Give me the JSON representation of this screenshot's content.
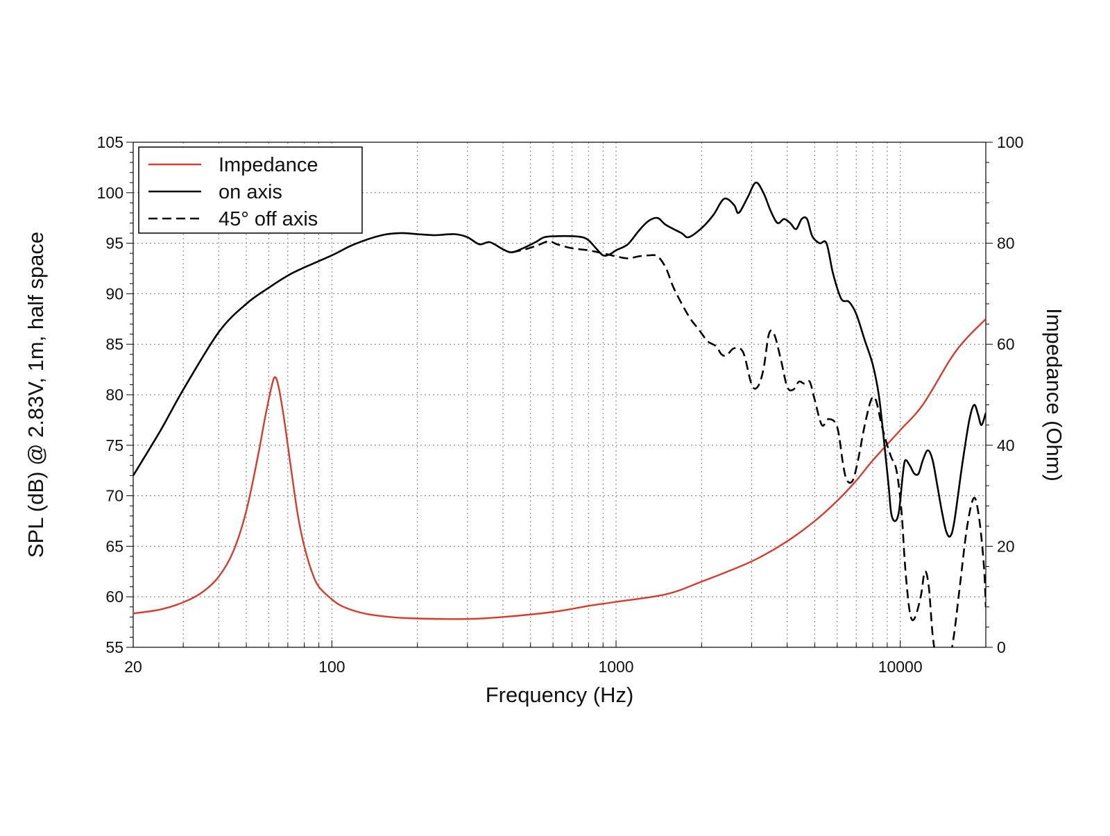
{
  "chart_data": {
    "type": "line",
    "title": "",
    "xlabel": "Frequency (Hz)",
    "ylabel": "SPL (dB) @ 2.83V, 1m, half space",
    "y2label": "Impedance (Ohm)",
    "xscale": "log",
    "xlim": [
      20,
      20000
    ],
    "ylim": [
      55,
      105
    ],
    "y2lim": [
      0,
      100
    ],
    "x_ticks": [
      20,
      100,
      1000,
      10000
    ],
    "x_tick_labels": [
      "20",
      "100",
      "1000",
      "10000"
    ],
    "y_ticks": [
      55,
      60,
      65,
      70,
      75,
      80,
      85,
      90,
      95,
      100,
      105
    ],
    "y_tick_labels": [
      "55",
      "60",
      "65",
      "70",
      "75",
      "80",
      "85",
      "90",
      "95",
      "100",
      "105"
    ],
    "y2_ticks": [
      0,
      20,
      40,
      60,
      80,
      100
    ],
    "y2_tick_labels": [
      "0",
      "20",
      "40",
      "60",
      "80",
      "100"
    ],
    "grid": true,
    "legend_position": "top-left",
    "series": [
      {
        "name": "Impedance",
        "axis": "right",
        "color": "#d93a2b",
        "style": "solid",
        "points": [
          [
            20,
            6.7
          ],
          [
            25,
            7.5
          ],
          [
            30,
            8.9
          ],
          [
            35,
            10.9
          ],
          [
            40,
            14
          ],
          [
            45,
            19
          ],
          [
            50,
            27
          ],
          [
            55,
            38
          ],
          [
            58,
            45
          ],
          [
            61,
            51
          ],
          [
            63,
            53.5
          ],
          [
            65,
            51.5
          ],
          [
            68,
            45
          ],
          [
            72,
            35
          ],
          [
            76,
            26
          ],
          [
            80,
            20
          ],
          [
            85,
            15
          ],
          [
            90,
            12
          ],
          [
            100,
            9.5
          ],
          [
            110,
            8
          ],
          [
            130,
            6.7
          ],
          [
            160,
            6
          ],
          [
            200,
            5.7
          ],
          [
            300,
            5.6
          ],
          [
            400,
            6
          ],
          [
            600,
            7
          ],
          [
            800,
            8.2
          ],
          [
            1000,
            9
          ],
          [
            1500,
            10.5
          ],
          [
            2000,
            13
          ],
          [
            3000,
            17
          ],
          [
            4000,
            21
          ],
          [
            5000,
            25
          ],
          [
            6000,
            29
          ],
          [
            7000,
            33
          ],
          [
            8000,
            37
          ],
          [
            10000,
            43
          ],
          [
            12000,
            48
          ],
          [
            15000,
            57
          ],
          [
            17000,
            61
          ],
          [
            20000,
            65
          ]
        ]
      },
      {
        "name": "on axis",
        "axis": "left",
        "color": "#000000",
        "style": "solid",
        "points": [
          [
            20,
            72
          ],
          [
            25,
            76.5
          ],
          [
            30,
            80.5
          ],
          [
            40,
            86.2
          ],
          [
            50,
            89
          ],
          [
            60,
            90.6
          ],
          [
            70,
            91.8
          ],
          [
            80,
            92.6
          ],
          [
            100,
            93.8
          ],
          [
            120,
            94.9
          ],
          [
            150,
            95.8
          ],
          [
            175,
            96
          ],
          [
            200,
            95.9
          ],
          [
            230,
            95.8
          ],
          [
            270,
            95.9
          ],
          [
            300,
            95.6
          ],
          [
            330,
            94.9
          ],
          [
            360,
            95.1
          ],
          [
            400,
            94.4
          ],
          [
            430,
            94.1
          ],
          [
            470,
            94.5
          ],
          [
            520,
            95.1
          ],
          [
            560,
            95.6
          ],
          [
            620,
            95.7
          ],
          [
            700,
            95.7
          ],
          [
            760,
            95.6
          ],
          [
            800,
            95.3
          ],
          [
            850,
            94.5
          ],
          [
            900,
            93.8
          ],
          [
            950,
            93.9
          ],
          [
            1000,
            94.3
          ],
          [
            1100,
            94.9
          ],
          [
            1200,
            96.2
          ],
          [
            1300,
            97.2
          ],
          [
            1400,
            97.5
          ],
          [
            1500,
            96.8
          ],
          [
            1700,
            96
          ],
          [
            1800,
            95.6
          ],
          [
            2000,
            96.5
          ],
          [
            2200,
            97.8
          ],
          [
            2400,
            99.4
          ],
          [
            2600,
            98.8
          ],
          [
            2700,
            98
          ],
          [
            2900,
            99.5
          ],
          [
            3100,
            101
          ],
          [
            3300,
            100
          ],
          [
            3500,
            98.2
          ],
          [
            3700,
            97
          ],
          [
            3900,
            97.4
          ],
          [
            4100,
            97
          ],
          [
            4300,
            96.4
          ],
          [
            4500,
            97.4
          ],
          [
            4700,
            97.4
          ],
          [
            4900,
            95.7
          ],
          [
            5200,
            95
          ],
          [
            5500,
            95
          ],
          [
            5800,
            92
          ],
          [
            6200,
            89.5
          ],
          [
            6600,
            89.2
          ],
          [
            7000,
            88
          ],
          [
            7500,
            85.4
          ],
          [
            8000,
            83
          ],
          [
            8400,
            80
          ],
          [
            8800,
            75
          ],
          [
            9100,
            71
          ],
          [
            9300,
            68.2
          ],
          [
            9600,
            67.5
          ],
          [
            9900,
            68.5
          ],
          [
            10200,
            72
          ],
          [
            10400,
            73.5
          ],
          [
            10800,
            73
          ],
          [
            11200,
            72.2
          ],
          [
            11600,
            72.2
          ],
          [
            12000,
            73.5
          ],
          [
            12500,
            74.5
          ],
          [
            13000,
            73.5
          ],
          [
            13500,
            71
          ],
          [
            14000,
            68.5
          ],
          [
            14500,
            66.5
          ],
          [
            15000,
            66
          ],
          [
            15500,
            67.5
          ],
          [
            16500,
            73
          ],
          [
            17500,
            77.5
          ],
          [
            18200,
            79
          ],
          [
            18800,
            78
          ],
          [
            19300,
            77
          ],
          [
            20000,
            78.2
          ]
        ]
      },
      {
        "name": "45° off axis",
        "axis": "left",
        "color": "#000000",
        "style": "dashed",
        "points": [
          [
            430,
            94.1
          ],
          [
            480,
            94.4
          ],
          [
            530,
            94.8
          ],
          [
            580,
            95.2
          ],
          [
            620,
            94.9
          ],
          [
            700,
            94.5
          ],
          [
            800,
            94.3
          ],
          [
            900,
            94
          ],
          [
            1000,
            93.7
          ],
          [
            1100,
            93.5
          ],
          [
            1200,
            93.7
          ],
          [
            1300,
            93.8
          ],
          [
            1400,
            93.7
          ],
          [
            1500,
            92.5
          ],
          [
            1600,
            90.5
          ],
          [
            1800,
            87.8
          ],
          [
            1950,
            86.5
          ],
          [
            2100,
            85.3
          ],
          [
            2250,
            84.8
          ],
          [
            2350,
            84
          ],
          [
            2450,
            83.9
          ],
          [
            2600,
            84.6
          ],
          [
            2800,
            84.2
          ],
          [
            3000,
            81
          ],
          [
            3150,
            80.8
          ],
          [
            3300,
            82.5
          ],
          [
            3450,
            86
          ],
          [
            3600,
            86
          ],
          [
            3800,
            83.5
          ],
          [
            4000,
            80.8
          ],
          [
            4200,
            80.5
          ],
          [
            4400,
            81.3
          ],
          [
            4600,
            81.1
          ],
          [
            4800,
            81.3
          ],
          [
            5000,
            79.5
          ],
          [
            5300,
            77
          ],
          [
            5600,
            77.6
          ],
          [
            6000,
            76.8
          ],
          [
            6300,
            73
          ],
          [
            6500,
            71.5
          ],
          [
            6800,
            71.5
          ],
          [
            7100,
            73.5
          ],
          [
            7500,
            77
          ],
          [
            7900,
            79.5
          ],
          [
            8200,
            79.5
          ],
          [
            8600,
            77
          ],
          [
            9000,
            75
          ],
          [
            9300,
            73.8
          ],
          [
            9700,
            72.5
          ],
          [
            10100,
            68.5
          ],
          [
            10400,
            63
          ],
          [
            10800,
            58.5
          ],
          [
            11200,
            57.8
          ],
          [
            11800,
            60
          ],
          [
            12200,
            62.5
          ],
          [
            12600,
            61
          ],
          [
            13000,
            56.2
          ],
          [
            13500,
            53
          ]
        ]
      },
      {
        "name": "45° off axis (high)",
        "axis": "left",
        "color": "#000000",
        "style": "dashed",
        "points": [
          [
            14800,
            53
          ],
          [
            15500,
            56.5
          ],
          [
            16200,
            61
          ],
          [
            17200,
            67
          ],
          [
            18200,
            69.8
          ],
          [
            19000,
            67.5
          ],
          [
            19700,
            63
          ],
          [
            20000,
            59
          ]
        ]
      }
    ]
  },
  "legend": {
    "items": [
      {
        "label": "Impedance",
        "color": "#d93a2b",
        "style": "solid"
      },
      {
        "label": "on axis",
        "color": "#000000",
        "style": "solid"
      },
      {
        "label": "45° off axis",
        "color": "#000000",
        "style": "dashed"
      }
    ]
  }
}
